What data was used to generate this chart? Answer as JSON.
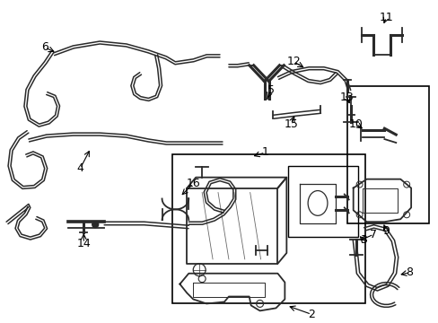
{
  "bg_color": "#ffffff",
  "line_color": "#2a2a2a",
  "figsize": [
    4.89,
    3.6
  ],
  "dpi": 100,
  "label_fontsize": 9
}
